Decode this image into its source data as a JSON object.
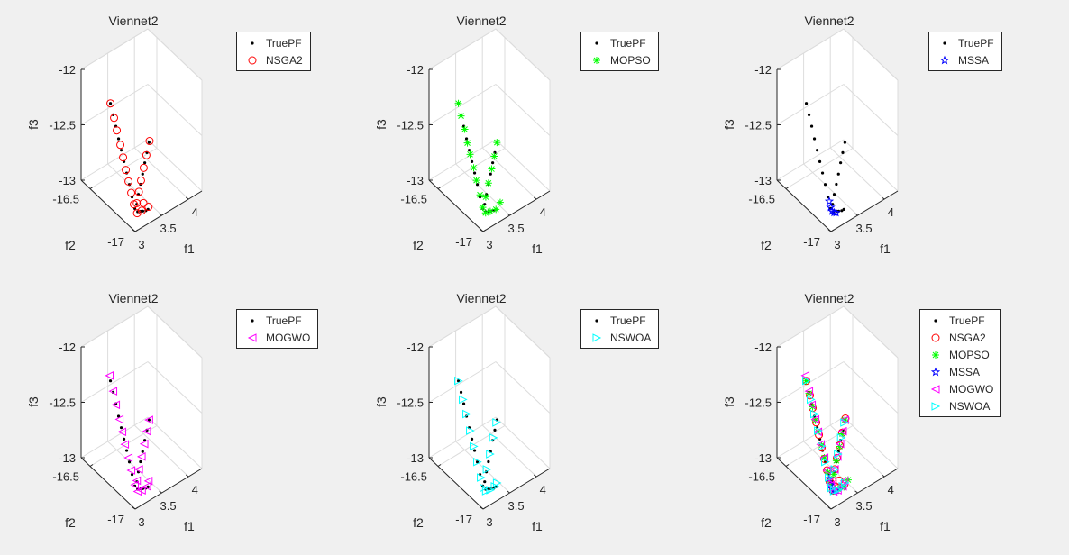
{
  "chart_data": {
    "type": "scatter",
    "projection": "3d",
    "grid": true,
    "legend_placement": "outside-top-right",
    "axes": {
      "xlabel": "f1",
      "ylabel": "f2",
      "zlabel": "f3",
      "xlim": [
        3,
        4.25
      ],
      "ylim": [
        -17,
        -16.4
      ],
      "zlim": [
        -13,
        -12
      ],
      "xticks": [
        "3",
        "3.5",
        "4"
      ],
      "yticks": [
        "-17",
        "-16.5"
      ],
      "zticks": [
        "-13",
        "-12.5",
        "-12"
      ]
    },
    "series": [
      {
        "name": "TruePF",
        "color": "#000000",
        "marker": "dot",
        "points": [
          [
            3.06,
            -16.69,
            -12.1
          ],
          [
            3.06,
            -16.72,
            -12.18
          ],
          [
            3.06,
            -16.75,
            -12.26
          ],
          [
            3.06,
            -16.78,
            -12.35
          ],
          [
            3.06,
            -16.81,
            -12.43
          ],
          [
            3.06,
            -16.84,
            -12.51
          ],
          [
            3.06,
            -16.87,
            -12.59
          ],
          [
            3.06,
            -16.9,
            -12.67
          ],
          [
            3.06,
            -16.93,
            -12.76
          ],
          [
            3.06,
            -16.96,
            -12.84
          ],
          [
            3.31,
            -16.97,
            -12.31
          ],
          [
            3.27,
            -16.97,
            -12.39
          ],
          [
            3.23,
            -16.97,
            -12.47
          ],
          [
            3.19,
            -16.97,
            -12.56
          ],
          [
            3.15,
            -16.97,
            -12.64
          ],
          [
            3.11,
            -16.97,
            -12.72
          ],
          [
            3.08,
            -16.97,
            -12.8
          ],
          [
            3.08,
            -16.98,
            -12.86
          ],
          [
            3.12,
            -16.99,
            -12.86
          ],
          [
            3.16,
            -16.99,
            -12.87
          ],
          [
            3.2,
            -17.0,
            -12.87
          ],
          [
            3.24,
            -17.0,
            -12.87
          ]
        ]
      },
      {
        "name": "NSGA2",
        "color": "#ff0000",
        "marker": "circle",
        "points": [
          [
            3.06,
            -16.69,
            -12.1
          ],
          [
            3.06,
            -16.73,
            -12.2
          ],
          [
            3.06,
            -16.76,
            -12.29
          ],
          [
            3.06,
            -16.8,
            -12.39
          ],
          [
            3.06,
            -16.83,
            -12.48
          ],
          [
            3.06,
            -16.86,
            -12.57
          ],
          [
            3.06,
            -16.89,
            -12.65
          ],
          [
            3.06,
            -16.92,
            -12.73
          ],
          [
            3.06,
            -16.95,
            -12.81
          ],
          [
            3.32,
            -16.97,
            -12.3
          ],
          [
            3.26,
            -16.97,
            -12.41
          ],
          [
            3.21,
            -16.97,
            -12.51
          ],
          [
            3.16,
            -16.97,
            -12.61
          ],
          [
            3.12,
            -16.97,
            -12.7
          ],
          [
            3.08,
            -16.97,
            -12.79
          ],
          [
            3.07,
            -16.98,
            -12.87
          ],
          [
            3.14,
            -16.99,
            -12.86
          ],
          [
            3.25,
            -17.0,
            -12.85
          ],
          [
            3.17,
            -16.99,
            -12.8
          ]
        ]
      },
      {
        "name": "MOPSO",
        "color": "#00ff00",
        "marker": "asterisk",
        "points": [
          [
            3.06,
            -16.69,
            -12.1
          ],
          [
            3.06,
            -16.72,
            -12.19
          ],
          [
            3.06,
            -16.76,
            -12.28
          ],
          [
            3.06,
            -16.79,
            -12.38
          ],
          [
            3.06,
            -16.82,
            -12.46
          ],
          [
            3.06,
            -16.86,
            -12.55
          ],
          [
            3.06,
            -16.89,
            -12.64
          ],
          [
            3.06,
            -16.93,
            -12.74
          ],
          [
            3.06,
            -16.96,
            -12.83
          ],
          [
            3.31,
            -16.97,
            -12.31
          ],
          [
            3.26,
            -16.97,
            -12.42
          ],
          [
            3.21,
            -16.97,
            -12.52
          ],
          [
            3.15,
            -16.97,
            -12.63
          ],
          [
            3.1,
            -16.97,
            -12.74
          ],
          [
            3.08,
            -16.98,
            -12.87
          ],
          [
            3.15,
            -16.99,
            -12.87
          ],
          [
            3.24,
            -17.0,
            -12.87
          ],
          [
            3.32,
            -17.0,
            -12.83
          ]
        ]
      },
      {
        "name": "MSSA",
        "color": "#0000ff",
        "marker": "star",
        "points": [
          [
            3.05,
            -16.95,
            -12.78
          ],
          [
            3.06,
            -16.96,
            -12.83
          ],
          [
            3.07,
            -16.97,
            -12.86
          ],
          [
            3.09,
            -16.98,
            -12.87
          ],
          [
            3.11,
            -16.99,
            -12.87
          ]
        ]
      },
      {
        "name": "MOGWO",
        "color": "#ff00ff",
        "marker": "triangle-left",
        "points": [
          [
            3.06,
            -16.68,
            -12.06
          ],
          [
            3.06,
            -16.72,
            -12.17
          ],
          [
            3.06,
            -16.75,
            -12.27
          ],
          [
            3.06,
            -16.79,
            -12.37
          ],
          [
            3.06,
            -16.82,
            -12.46
          ],
          [
            3.06,
            -16.85,
            -12.55
          ],
          [
            3.06,
            -16.89,
            -12.64
          ],
          [
            3.06,
            -16.92,
            -12.73
          ],
          [
            3.06,
            -16.96,
            -12.83
          ],
          [
            3.31,
            -16.97,
            -12.31
          ],
          [
            3.27,
            -16.97,
            -12.4
          ],
          [
            3.22,
            -16.97,
            -12.5
          ],
          [
            3.17,
            -16.97,
            -12.6
          ],
          [
            3.12,
            -16.97,
            -12.7
          ],
          [
            3.08,
            -16.97,
            -12.79
          ],
          [
            3.08,
            -16.98,
            -12.88
          ],
          [
            3.14,
            -16.99,
            -12.88
          ],
          [
            3.22,
            -17.0,
            -12.86
          ],
          [
            3.25,
            -17.0,
            -12.82
          ]
        ]
      },
      {
        "name": "NSWOA",
        "color": "#00ffff",
        "marker": "triangle-right",
        "points": [
          [
            3.06,
            -16.69,
            -12.1
          ],
          [
            3.06,
            -16.74,
            -12.23
          ],
          [
            3.06,
            -16.78,
            -12.33
          ],
          [
            3.06,
            -16.82,
            -12.45
          ],
          [
            3.06,
            -16.86,
            -12.56
          ],
          [
            3.06,
            -16.9,
            -12.67
          ],
          [
            3.06,
            -16.94,
            -12.78
          ],
          [
            3.3,
            -16.97,
            -12.33
          ],
          [
            3.24,
            -16.97,
            -12.45
          ],
          [
            3.18,
            -16.97,
            -12.58
          ],
          [
            3.12,
            -16.97,
            -12.7
          ],
          [
            3.06,
            -16.97,
            -12.85
          ],
          [
            3.09,
            -16.98,
            -12.88
          ],
          [
            3.15,
            -16.99,
            -12.88
          ],
          [
            3.22,
            -17.0,
            -12.86
          ],
          [
            3.26,
            -17.0,
            -12.84
          ]
        ]
      }
    ],
    "subplots": [
      {
        "title": "Viennet2",
        "legend": [
          "TruePF",
          "NSGA2"
        ]
      },
      {
        "title": "Viennet2",
        "legend": [
          "TruePF",
          "MOPSO"
        ]
      },
      {
        "title": "Viennet2",
        "legend": [
          "TruePF",
          "MSSA"
        ]
      },
      {
        "title": "Viennet2",
        "legend": [
          "TruePF",
          "MOGWO"
        ]
      },
      {
        "title": "Viennet2",
        "legend": [
          "TruePF",
          "NSWOA"
        ]
      },
      {
        "title": "Viennet2",
        "legend": [
          "TruePF",
          "NSGA2",
          "MOPSO",
          "MSSA",
          "MOGWO",
          "NSWOA"
        ]
      }
    ]
  }
}
